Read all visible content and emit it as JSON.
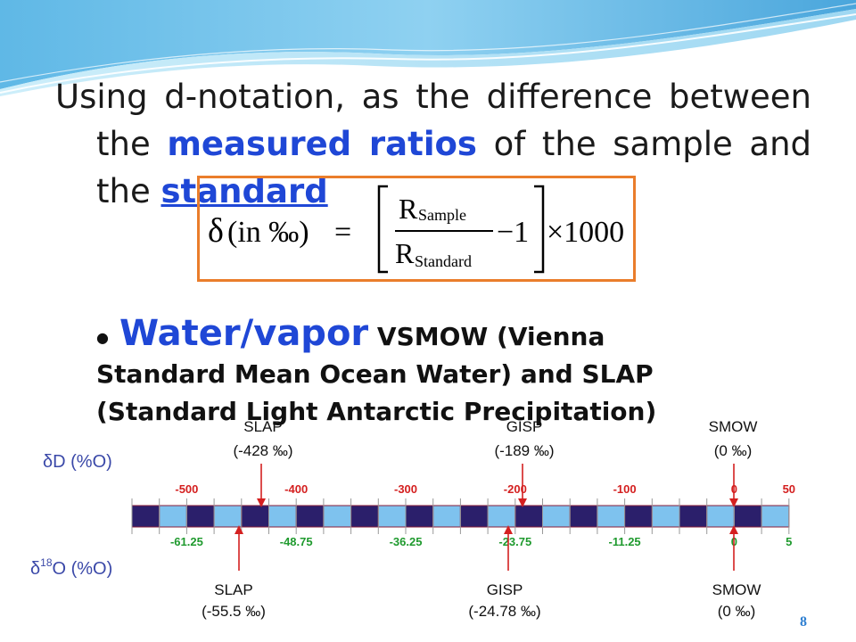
{
  "slide": {
    "paragraph": {
      "line1": "Using d-notation, as the difference between",
      "line2_a": "the ",
      "line2_b": "measured ratios",
      "line2_c": " of the sample and",
      "line3_a": "the ",
      "line3_b": "standard"
    },
    "formula": {
      "delta": "δ",
      "in": "(in ‰)",
      "equals": "=",
      "r": "R",
      "sample_sub": "Sample",
      "standard_sub": "Standard",
      "minus_one": "−1",
      "times": "×1000"
    },
    "bullet": {
      "big": "Water/vapor",
      "line1_rest": " VSMOW (Vienna",
      "line2": "Standard Mean Ocean Water) and SLAP",
      "line3": "(Standard Light Antarctic Precipitation)"
    },
    "page_number": "8"
  },
  "diagram": {
    "dD_label": "δD (%O)",
    "d18O_label": "δ18O (%O)",
    "d18O_prefix": "δ",
    "d18O_sup": "18",
    "d18O_suffix": "O (%O)",
    "top_ticks": [
      "-500",
      "-400",
      "-300",
      "-200",
      "-100",
      "0",
      "50"
    ],
    "bottom_ticks": [
      "-61.25",
      "-48.75",
      "-36.25",
      "-23.75",
      "-11.25",
      "0",
      "5"
    ],
    "top_labels": [
      {
        "name": "SLAP",
        "value": "(-428 ‰)"
      },
      {
        "name": "GISP",
        "value": "(-189 ‰)"
      },
      {
        "name": "SMOW",
        "value": "(0 ‰)"
      }
    ],
    "bottom_labels": [
      {
        "name": "SLAP",
        "value": "(-55.5 ‰)"
      },
      {
        "name": "GISP",
        "value": "(-24.78 ‰)"
      },
      {
        "name": "SMOW",
        "value": "(0 ‰)"
      }
    ],
    "colors": {
      "dark": "#2b1f6b",
      "light": "#7ec2ee",
      "accent": "#1f47d6",
      "orange": "#ea7d2b",
      "red": "#d42020",
      "green": "#1f9a2e",
      "blue_label": "#3a48a8"
    }
  }
}
